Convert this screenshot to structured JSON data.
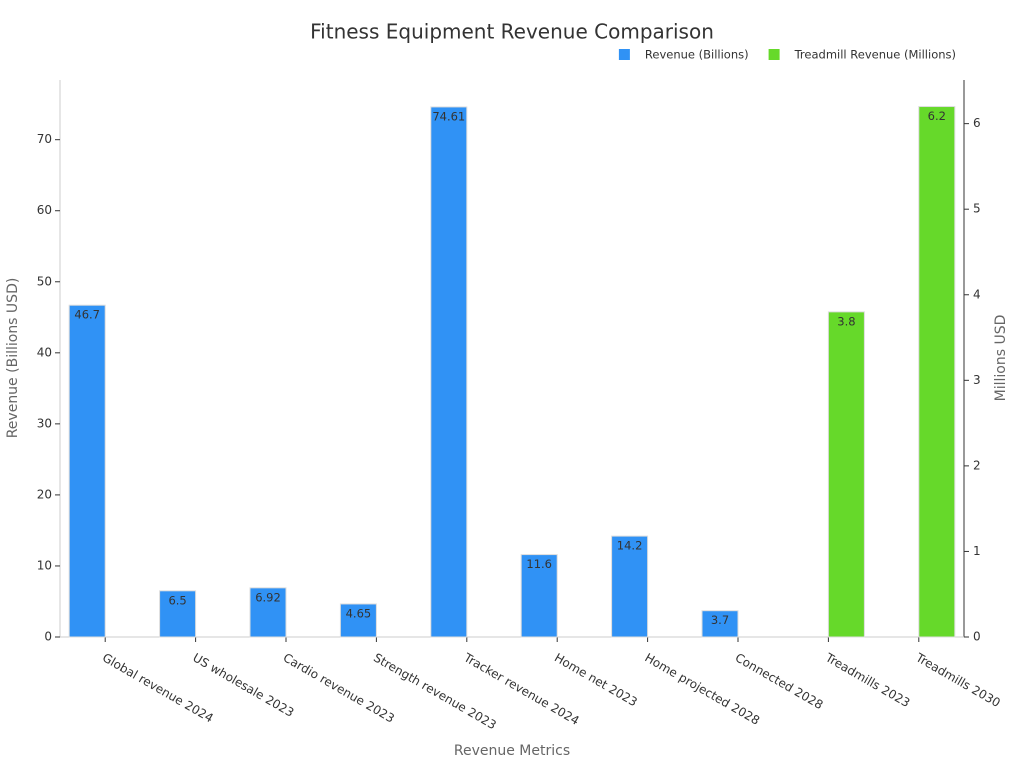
{
  "chart_data": {
    "type": "bar",
    "title": "Fitness Equipment Revenue Comparison",
    "x_label": "Revenue Metrics",
    "y_label": "Revenue (Billions USD)",
    "y2_label": "Millions USD",
    "categories": [
      "Global revenue 2024",
      "US wholesale 2023",
      "Cardio revenue 2023",
      "Strength revenue 2023",
      "Tracker revenue 2024",
      "Home net 2023",
      "Home projected 2028",
      "Connected 2028",
      "Treadmills 2023",
      "Treadmills 2030"
    ],
    "series": [
      {
        "name": "Revenue (Billions)",
        "color": "#3092f5",
        "values": [
          46.7,
          6.5,
          6.92,
          4.65,
          74.61,
          11.6,
          14.2,
          3.7,
          null,
          null
        ]
      },
      {
        "name": "Treadmill Revenue (Millions)",
        "color": "#66d92a",
        "axis": "y2",
        "values": [
          null,
          null,
          null,
          null,
          null,
          null,
          null,
          null,
          3.8,
          6.2
        ]
      }
    ],
    "ylim": [
      0,
      78.4
    ],
    "yticks": [
      0,
      10,
      20,
      30,
      40,
      50,
      60,
      70
    ],
    "y2lim": [
      0,
      6.51
    ],
    "y2ticks": [
      0,
      1,
      2,
      3,
      4,
      5,
      6
    ],
    "legend": "top-right"
  }
}
